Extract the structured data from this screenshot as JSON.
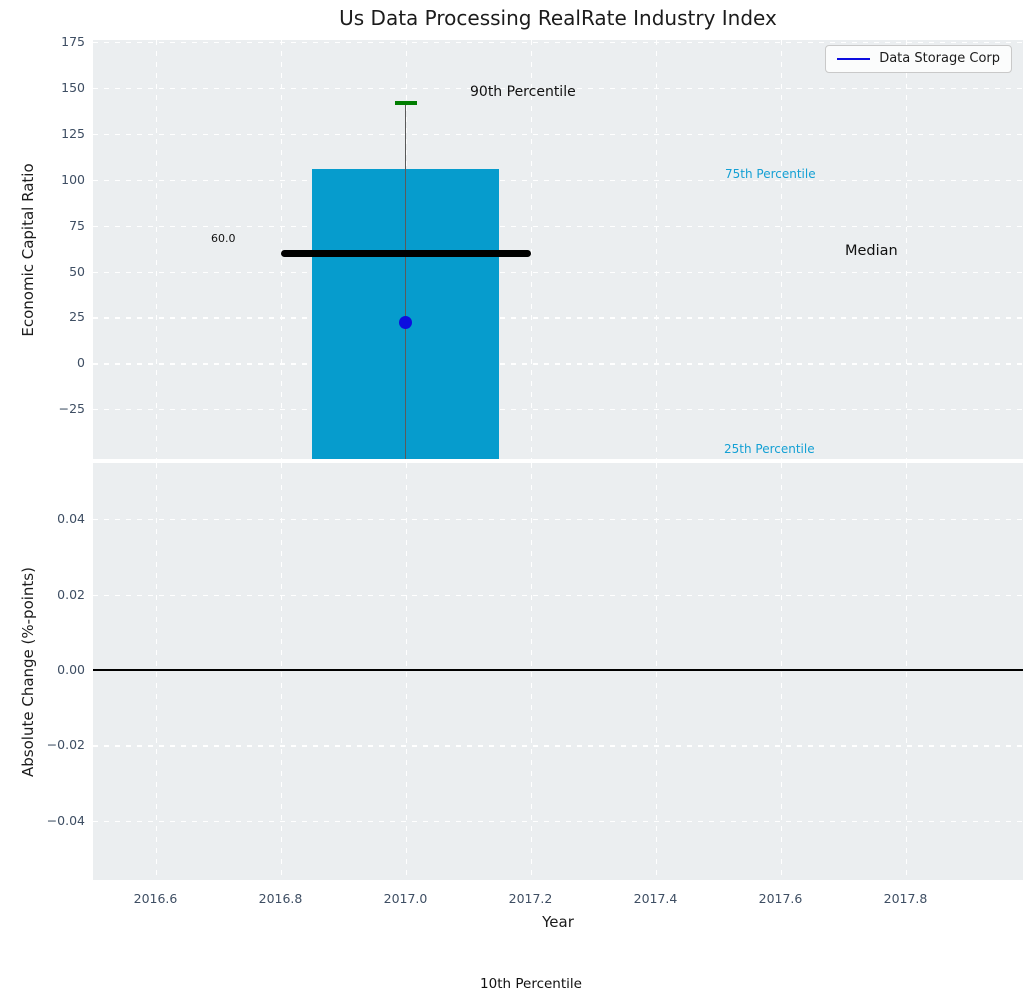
{
  "title": "Us Data Processing RealRate Industry Index",
  "legend": {
    "label": "Data Storage Corp"
  },
  "colors": {
    "bar": "#069ccd",
    "whisker": "#5a5a5a",
    "cap": "#007d00",
    "median": "#000000",
    "point": "#0d0ddf",
    "legend_line": "#0d0ddf",
    "cyan_text": "#14a0d4",
    "tick_text": "#3e4e63",
    "axes_bg": "#ebeef0",
    "grid": "#ffffff",
    "zero_line": "#000000"
  },
  "top_axes": {
    "ylabel": "Economic Capital Ratio",
    "yticks": [
      {
        "v": 175,
        "label": "175"
      },
      {
        "v": 150,
        "label": "150"
      },
      {
        "v": 125,
        "label": "125"
      },
      {
        "v": 100,
        "label": "100"
      },
      {
        "v": 75,
        "label": "75"
      },
      {
        "v": 50,
        "label": "50"
      },
      {
        "v": 25,
        "label": "25"
      },
      {
        "v": 0,
        "label": "0"
      },
      {
        "v": -25,
        "label": "−25"
      }
    ]
  },
  "bottom_axes": {
    "ylabel": "Absolute Change (%-points)",
    "yticks": [
      {
        "v": 0.04,
        "label": "0.04"
      },
      {
        "v": 0.02,
        "label": "0.02"
      },
      {
        "v": 0,
        "label": "0.00"
      },
      {
        "v": -0.02,
        "label": "−0.02"
      },
      {
        "v": -0.04,
        "label": "−0.04"
      }
    ]
  },
  "x_axis": {
    "label": "Year",
    "ticks": [
      {
        "v": 2016.6,
        "label": "2016.6"
      },
      {
        "v": 2016.8,
        "label": "2016.8"
      },
      {
        "v": 2017.0,
        "label": "2017.0"
      },
      {
        "v": 2017.2,
        "label": "2017.2"
      },
      {
        "v": 2017.4,
        "label": "2017.4"
      },
      {
        "v": 2017.6,
        "label": "2017.6"
      },
      {
        "v": 2017.8,
        "label": "2017.8"
      }
    ]
  },
  "annotations": {
    "p90": "90th Percentile",
    "p75": "75th Percentile",
    "median": "Median",
    "p25": "25th Percentile",
    "p10": "10th Percentile",
    "median_value": "60.0"
  },
  "chart_data": [
    {
      "type": "boxplot",
      "title": "Us Data Processing RealRate Industry Index",
      "ylabel": "Economic Capital Ratio",
      "x_center": 2017.0,
      "bar_width_years": 0.3,
      "median_span_years": [
        2016.8,
        2017.2
      ],
      "percentiles": {
        "p90": 142,
        "p75": 106,
        "median": 60.0,
        "p25": -52,
        "p25_display": "bar clipped at bottom edge of axis",
        "p10_display": "below visible axis range (label pinned at figure bottom)"
      },
      "company_point": {
        "name": "Data Storage Corp",
        "x": 2017.0,
        "y": 22
      },
      "ylim": [
        -52,
        176
      ],
      "xlim": [
        2016.5,
        2017.99
      ],
      "yticks": [
        175,
        150,
        125,
        100,
        75,
        50,
        25,
        0,
        -25
      ],
      "xticks": [
        2016.6,
        2016.8,
        2017.0,
        2017.2,
        2017.4,
        2017.6,
        2017.8
      ],
      "grid": true,
      "legend_position": "upper right",
      "legend_entries": [
        "Data Storage Corp"
      ]
    },
    {
      "type": "line",
      "ylabel": "Absolute Change (%-points)",
      "xlabel": "Year",
      "series": [],
      "yticks": [
        0.04,
        0.02,
        0.0,
        -0.02,
        -0.04
      ],
      "ylim": [
        -0.055,
        0.055
      ],
      "xlim": [
        2016.5,
        2017.99
      ],
      "zero_line_y": 0.0,
      "grid": true
    }
  ]
}
